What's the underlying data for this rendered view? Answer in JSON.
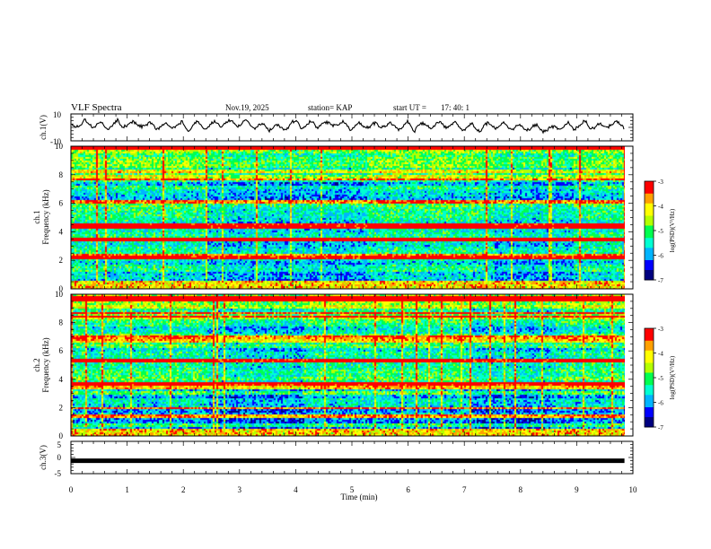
{
  "header": {
    "title": "VLF Spectra",
    "date": "Nov.19, 2025",
    "station": "station= KAP",
    "start_label": "start  UT  =",
    "start_time": "17: 40: 1"
  },
  "chart_data": [
    {
      "type": "line",
      "panel": "ch1-waveform",
      "ylabel": "ch.1(V)",
      "ylim": [
        -10,
        10
      ],
      "ytick_labels": [
        "10",
        "-10"
      ],
      "xlim": [
        0,
        10
      ],
      "trace_end_min": 9.85,
      "trace_center_v": 1.5,
      "trace_noise_v": 2.5
    },
    {
      "type": "heatmap",
      "panel": "ch1-spectrogram",
      "ylabel_line1": "ch.1",
      "ylabel_line2": "Frequency (kHz)",
      "ylim": [
        0,
        10
      ],
      "ytick_labels": [
        "0",
        "2",
        "4",
        "6",
        "8",
        "10"
      ],
      "xlim": [
        0,
        10
      ],
      "data_end_min": 9.85,
      "colorbar": {
        "label": "log(PSD)(V²/Hz)",
        "range": [
          -7,
          -3
        ],
        "tick_labels": [
          "-3",
          "-4",
          "-5",
          "-6",
          "-7"
        ]
      }
    },
    {
      "type": "heatmap",
      "panel": "ch2-spectrogram",
      "ylabel_line1": "ch.2",
      "ylabel_line2": "Frequency (kHz)",
      "ylim": [
        0,
        10
      ],
      "ytick_labels": [
        "0",
        "2",
        "4",
        "6",
        "8",
        "10"
      ],
      "xlim": [
        0,
        10
      ],
      "data_end_min": 9.85,
      "colorbar": {
        "label": "log(PSD)(V²/Hz)",
        "range": [
          -7,
          -3
        ],
        "tick_labels": [
          "-3",
          "-4",
          "-5",
          "-6",
          "-7"
        ]
      }
    },
    {
      "type": "line",
      "panel": "ch3-waveform",
      "ylabel": "ch.3(V)",
      "ylim": [
        -5,
        5
      ],
      "ytick_labels": [
        "5",
        "0",
        "-5"
      ],
      "xlim": [
        0,
        10
      ],
      "trace_end_min": 9.85,
      "trace_value_v": -1
    }
  ],
  "x_axis": {
    "label": "Time (min)",
    "tick_labels": [
      "0",
      "1",
      "2",
      "3",
      "4",
      "5",
      "6",
      "7",
      "8",
      "9",
      "10"
    ]
  },
  "colormap": [
    "#000080",
    "#0000ff",
    "#00b4ff",
    "#00ffd2",
    "#00ff50",
    "#b4ff00",
    "#ffff00",
    "#ffa000",
    "#ff0000",
    "#ffffff"
  ]
}
